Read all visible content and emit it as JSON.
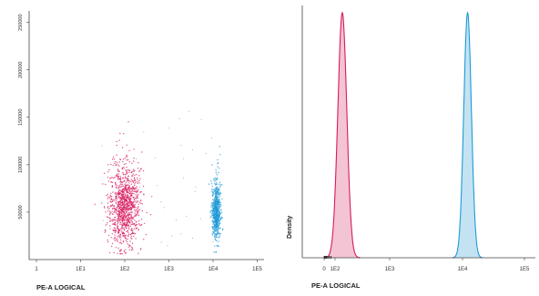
{
  "chart_data": [
    {
      "type": "scatter",
      "xlabel": "PE-A LOGICAL",
      "ylabel": "",
      "x_scale": "log",
      "x_ticks": [
        "1",
        "1E1",
        "1E2",
        "1E3",
        "1E4",
        "1E5"
      ],
      "y_ticks": [
        "50000",
        "100000",
        "150000",
        "200000",
        "250000"
      ],
      "ylim": [
        0,
        262144
      ],
      "grid": false,
      "colors": {
        "pink": "#d81b60",
        "blue": "#1e9ad6",
        "grey": "#bbbbbb"
      },
      "series": [
        {
          "x_center": 100,
          "x_spread_decades": 0.18,
          "y_center": 55000,
          "y_spread": 20000,
          "count": 1100,
          "color": "#d81b60"
        },
        {
          "x_center": 12000,
          "x_spread_decades": 0.05,
          "y_center": 50000,
          "y_spread": 14000,
          "count": 650,
          "color": "#1e9ad6"
        }
      ]
    },
    {
      "type": "area",
      "xlabel": "PE-A LOGICAL",
      "ylabel": "Density",
      "x_scale": "log",
      "x_ticks": [
        "0",
        "1E2",
        "1E3",
        "1E4",
        "1E5"
      ],
      "grid": false,
      "series": [
        {
          "mode_x": 130,
          "width_decades": 0.07,
          "peak": 1.0,
          "line_color": "#d81b60",
          "fill_color": "#f3c4d3"
        },
        {
          "mode_x": 12000,
          "width_decades": 0.06,
          "peak": 1.0,
          "line_color": "#1e9ad6",
          "fill_color": "#c4e3f2"
        }
      ]
    }
  ]
}
